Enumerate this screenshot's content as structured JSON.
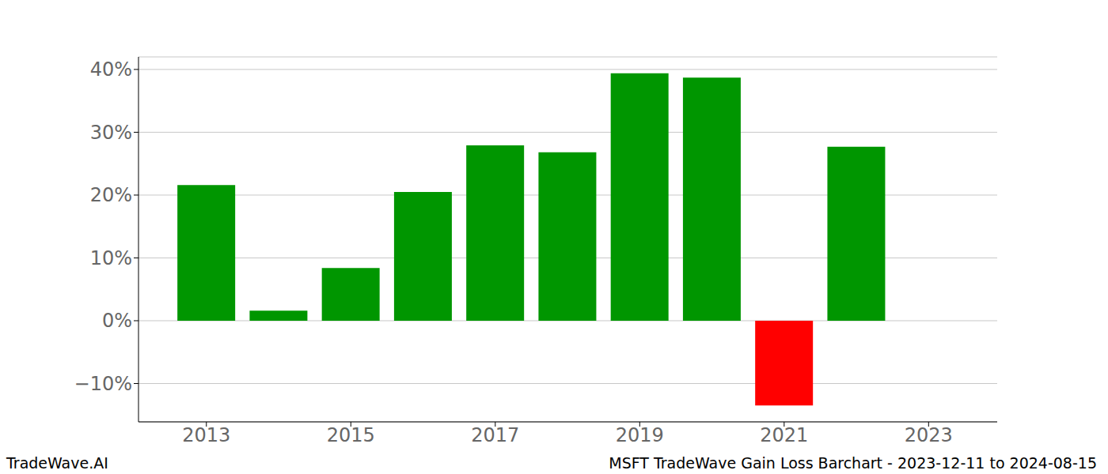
{
  "chart_data": {
    "type": "bar",
    "title": "MSFT TradeWave Gain Loss Barchart - 2023-12-11 to 2024-08-15",
    "annotations": [
      "TradeWave.AI"
    ],
    "x": [
      2013,
      2014,
      2015,
      2016,
      2017,
      2018,
      2019,
      2020,
      2021,
      2022
    ],
    "values": [
      21.6,
      1.6,
      8.4,
      20.5,
      27.9,
      26.8,
      39.4,
      38.7,
      -13.5,
      27.7
    ],
    "colors": [
      "#009600",
      "#009600",
      "#009600",
      "#009600",
      "#009600",
      "#009600",
      "#009600",
      "#009600",
      "#ff0000",
      "#009600"
    ],
    "xlim": [
      2012.06,
      2023.95
    ],
    "xticks": [
      2013,
      2015,
      2017,
      2019,
      2021,
      2023
    ],
    "ylim": [
      -16.1,
      42.0
    ],
    "yticks": [
      {
        "value": -10,
        "label": "−10%"
      },
      {
        "value": 0,
        "label": "0%"
      },
      {
        "value": 10,
        "label": "10%"
      },
      {
        "value": 20,
        "label": "20%"
      },
      {
        "value": 30,
        "label": "30%"
      },
      {
        "value": 40,
        "label": "40%"
      }
    ],
    "grid": true
  }
}
